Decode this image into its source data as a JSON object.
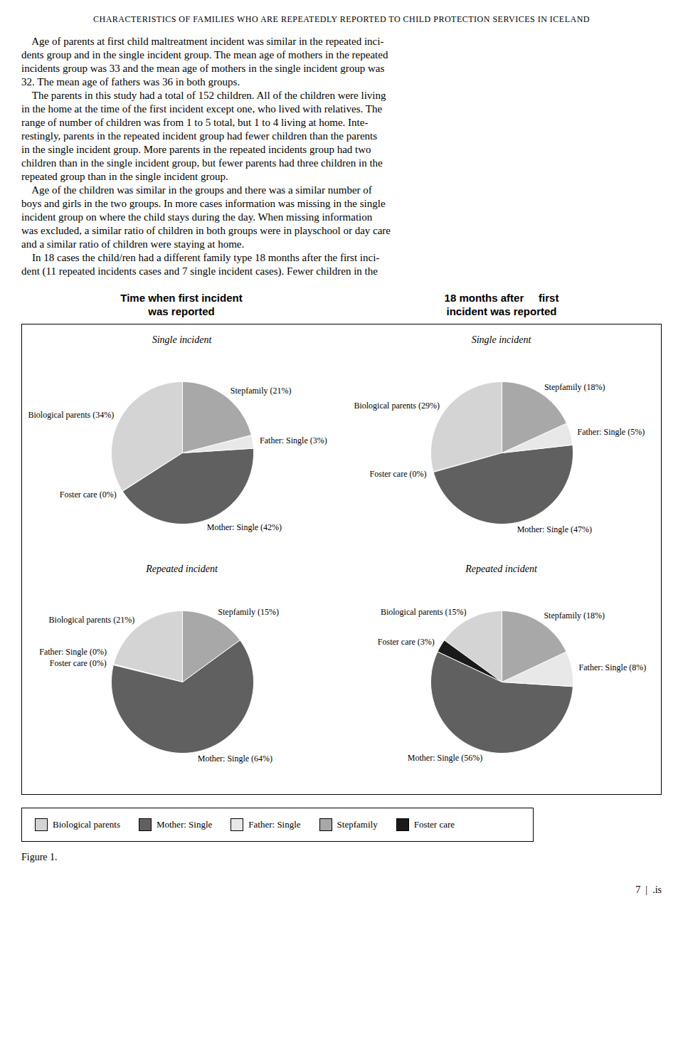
{
  "title": "CHARACTERISTICS OF FAMILIES WHO ARE REPEATEDLY REPORTED TO CHILD PROTECTION SERVICES IN ICELAND",
  "body_text": [
    "    Age of parents at first child maltreatment incident was similar in the repeated inci-",
    "dents group and in the single incident group. The mean age of mothers in the repeated",
    "incidents group was 33 and the mean age of mothers in the single incident group was",
    "32. The mean age of fathers was 36 in both groups.",
    "    The parents in this study had a total of 152 children. All of the children were living",
    "in the home at the time of the first incident except one, who lived with relatives. The",
    "range of number of children was from 1 to 5 total, but 1 to 4 living at home. Inte-",
    "restingly, parents in the repeated incident group had fewer children than the parents",
    "in the single incident group. More parents in the repeated incidents group had two",
    "children than in the single incident group, but fewer parents had three children in the",
    "repeated group than in the single incident group.",
    "    Age of the children was similar in the groups and there was a similar number of",
    "boys and girls in the two groups. In more cases information was missing in the single",
    "incident group on where the child stays during the day. When missing information",
    "was excluded, a similar ratio of children in both groups were in playschool or day care",
    "and a similar ratio of children were staying at home.",
    "    In 18 cases the child/ren had a different family type 18 months after the first inci-",
    "dent (11 repeated incidents cases and 7 single incident cases). Fewer children in the"
  ],
  "column_titles": [
    "Time when first incident\nwas reported",
    "18 months after     first\nincident was reported"
  ],
  "chart_data": [
    {
      "type": "pie",
      "title": "Single incident",
      "categories": [
        "Biological parents",
        "Foster care",
        "Mother: Single",
        "Father: Single",
        "Stepfamily"
      ],
      "values": [
        34,
        0.1,
        42,
        3,
        21
      ],
      "colors": [
        "#d4d4d4",
        "#1a1a1a",
        "#606060",
        "#e8e8e8",
        "#a8a8a8"
      ],
      "value_labels": [
        "Biological parents (34%)",
        "Foster care (0%)",
        "Mother: Single (42%)",
        "Father: Single (3%)",
        "Stepfamily (21%)"
      ],
      "data_labels": true
    },
    {
      "type": "pie",
      "title": "Single incident",
      "categories": [
        "Biological parents",
        "Foster care",
        "Mother: Single",
        "Father: Single",
        "Stepfamily"
      ],
      "values": [
        29,
        0.1,
        47,
        5,
        18
      ],
      "colors": [
        "#d4d4d4",
        "#1a1a1a",
        "#606060",
        "#e8e8e8",
        "#a8a8a8"
      ],
      "value_labels": [
        "Biological parents (29%)",
        "Foster care (0%)",
        "Mother: Single (47%)",
        "Father: Single (5%)",
        "Stepfamily (18%)"
      ],
      "data_labels": true
    },
    {
      "type": "pie",
      "title": "Repeated incident",
      "categories": [
        "Biological parents",
        "Father: Single",
        "Foster care",
        "Mother: Single",
        "Stepfamily"
      ],
      "values": [
        21,
        0.1,
        0.1,
        64,
        15
      ],
      "colors": [
        "#d4d4d4",
        "#e8e8e8",
        "#1a1a1a",
        "#606060",
        "#a8a8a8"
      ],
      "value_labels": [
        "Biological parents (21%)",
        "Father: Single (0%)",
        "Foster care (0%)",
        "Mother: Single (64%)",
        "Stepfamily (15%)"
      ],
      "data_labels": true
    },
    {
      "type": "pie",
      "title": "Repeated incident",
      "categories": [
        "Biological parents",
        "Foster care",
        "Mother: Single",
        "Father: Single",
        "Stepfamily"
      ],
      "values": [
        15,
        3,
        56,
        8,
        18
      ],
      "colors": [
        "#d4d4d4",
        "#1a1a1a",
        "#606060",
        "#e8e8e8",
        "#a8a8a8"
      ],
      "value_labels": [
        "Biological parents (15%)",
        "Foster care (3%)",
        "Mother: Single (56%)",
        "Father: Single (8%)",
        "Stepfamily (18%)"
      ],
      "data_labels": true
    }
  ],
  "legend_items": [
    {
      "name": "Biological parents",
      "color": "#d4d4d4"
    },
    {
      "name": "Mother: Single",
      "color": "#606060"
    },
    {
      "name": "Father: Single",
      "color": "#e8e8e8"
    },
    {
      "name": "Stepfamily",
      "color": "#a8a8a8"
    },
    {
      "name": "Foster care",
      "color": "#1a1a1a"
    }
  ],
  "caption": "Figure 1.",
  "page_info": "7  |  .is"
}
